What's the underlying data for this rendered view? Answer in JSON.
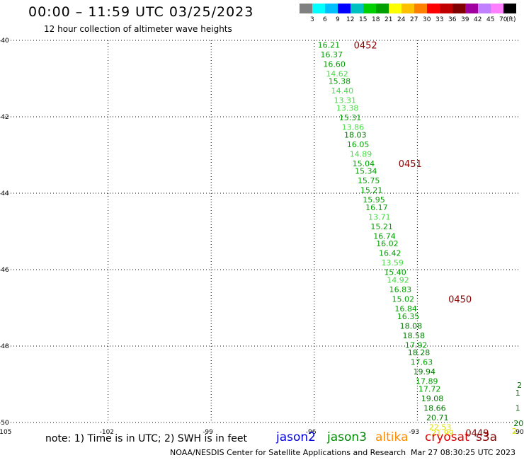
{
  "header": {
    "title": "00:00 – 11:59 UTC 03/25/2023",
    "subtitle": "12 hour collection of altimeter wave heights"
  },
  "colorbar": {
    "colors": [
      "#808080",
      "#00ffff",
      "#00bfff",
      "#0000ff",
      "#00c0c0",
      "#00d000",
      "#00a000",
      "#ffff00",
      "#ffc000",
      "#ff8000",
      "#ff0000",
      "#c00000",
      "#800000",
      "#a000a0",
      "#c080ff",
      "#ff80ff",
      "#000000"
    ],
    "labels": [
      "3",
      "6",
      "9",
      "12",
      "15",
      "18",
      "21",
      "24",
      "27",
      "30",
      "33",
      "36",
      "39",
      "42",
      "45",
      "70",
      "(ft)"
    ]
  },
  "footer": {
    "note": "note: 1) Time is in UTC; 2) SWH is in feet",
    "credit": "NOAA/NESDIS Center for Satellite Applications and Research",
    "timestamp": "Mar 27 08:30:25 UTC 2023"
  },
  "legend": [
    {
      "name": "jason2",
      "color": "#0000dd"
    },
    {
      "name": "jason3",
      "color": "#008800"
    },
    {
      "name": "altika",
      "color": "#ff8c00"
    },
    {
      "name": "cryosat",
      "color": "#dd0000"
    },
    {
      "name": "s3a",
      "color": "#880000"
    }
  ],
  "chart_data": {
    "type": "scatter",
    "title": "00:00 – 11:59 UTC 03/25/2023",
    "subtitle": "12 hour collection of altimeter wave heights",
    "xlabel": "",
    "ylabel": "",
    "xlim": [
      -105,
      -90
    ],
    "ylim": [
      -50,
      -40
    ],
    "xticks": [
      "-105",
      "-102",
      "-99",
      "-96",
      "-93",
      "-90"
    ],
    "yticks": [
      "-40",
      "-42",
      "-44",
      "-46",
      "-48",
      "-50"
    ],
    "grid": true,
    "series": [
      {
        "values": [
          {
            "x": -95.9,
            "y": -40.1,
            "v": "16.21",
            "c": "#00a000"
          },
          {
            "x": -95.82,
            "y": -40.35,
            "v": "16.37",
            "c": "#00a000"
          },
          {
            "x": -95.74,
            "y": -40.6,
            "v": "16.60",
            "c": "#00a000"
          },
          {
            "x": -95.66,
            "y": -40.85,
            "v": "14.62",
            "c": "#44dd44"
          },
          {
            "x": -95.59,
            "y": -41.05,
            "v": "15.38",
            "c": "#00a000"
          },
          {
            "x": -95.51,
            "y": -41.3,
            "v": "14.40",
            "c": "#44dd44"
          },
          {
            "x": -95.43,
            "y": -41.55,
            "v": "13.31",
            "c": "#44dd44"
          },
          {
            "x": -95.36,
            "y": -41.75,
            "v": "13.38",
            "c": "#44dd44"
          },
          {
            "x": -95.28,
            "y": -42.0,
            "v": "15.31",
            "c": "#00a000"
          },
          {
            "x": -95.2,
            "y": -42.25,
            "v": "13.86",
            "c": "#44dd44"
          },
          {
            "x": -95.13,
            "y": -42.45,
            "v": "18.03",
            "c": "#007700"
          },
          {
            "x": -95.05,
            "y": -42.7,
            "v": "16.05",
            "c": "#00a000"
          },
          {
            "x": -94.97,
            "y": -42.95,
            "v": "14.89",
            "c": "#44dd44"
          },
          {
            "x": -94.89,
            "y": -43.2,
            "v": "15.04",
            "c": "#00a000"
          },
          {
            "x": -94.82,
            "y": -43.4,
            "v": "15.34",
            "c": "#00a000"
          },
          {
            "x": -94.74,
            "y": -43.65,
            "v": "15.75",
            "c": "#00a000"
          },
          {
            "x": -94.66,
            "y": -43.9,
            "v": "15.21",
            "c": "#00a000"
          },
          {
            "x": -94.59,
            "y": -44.15,
            "v": "15.95",
            "c": "#00a000"
          },
          {
            "x": -94.51,
            "y": -44.35,
            "v": "16.17",
            "c": "#00a000"
          },
          {
            "x": -94.43,
            "y": -44.6,
            "v": "13.71",
            "c": "#44dd44"
          },
          {
            "x": -94.36,
            "y": -44.85,
            "v": "15.21",
            "c": "#00a000"
          },
          {
            "x": -94.28,
            "y": -45.1,
            "v": "16.74",
            "c": "#00a000"
          },
          {
            "x": -94.2,
            "y": -45.3,
            "v": "16.02",
            "c": "#00a000"
          },
          {
            "x": -94.12,
            "y": -45.55,
            "v": "16.42",
            "c": "#00a000"
          },
          {
            "x": -94.05,
            "y": -45.8,
            "v": "13.59",
            "c": "#44dd44"
          },
          {
            "x": -93.97,
            "y": -46.05,
            "v": "15.40",
            "c": "#00a000"
          },
          {
            "x": -93.89,
            "y": -46.25,
            "v": "14.92",
            "c": "#44dd44"
          },
          {
            "x": -93.82,
            "y": -46.5,
            "v": "16.83",
            "c": "#00a000"
          },
          {
            "x": -93.74,
            "y": -46.75,
            "v": "15.02",
            "c": "#00a000"
          },
          {
            "x": -93.66,
            "y": -47.0,
            "v": "16.84",
            "c": "#00a000"
          },
          {
            "x": -93.59,
            "y": -47.2,
            "v": "16.35",
            "c": "#00a000"
          },
          {
            "x": -93.51,
            "y": -47.45,
            "v": "18.08",
            "c": "#007700"
          },
          {
            "x": -93.43,
            "y": -47.7,
            "v": "18.58",
            "c": "#007700"
          },
          {
            "x": -93.36,
            "y": -47.95,
            "v": "17.92",
            "c": "#00a000"
          },
          {
            "x": -93.28,
            "y": -48.15,
            "v": "18.28",
            "c": "#007700"
          },
          {
            "x": -93.2,
            "y": -48.4,
            "v": "17.63",
            "c": "#00a000"
          },
          {
            "x": -93.12,
            "y": -48.65,
            "v": "19.94",
            "c": "#007700"
          },
          {
            "x": -93.05,
            "y": -48.9,
            "v": "17.89",
            "c": "#00a000"
          },
          {
            "x": -92.97,
            "y": -49.1,
            "v": "17.72",
            "c": "#00a000"
          },
          {
            "x": -92.89,
            "y": -49.35,
            "v": "19.08",
            "c": "#007700"
          },
          {
            "x": -92.82,
            "y": -49.6,
            "v": "18.66",
            "c": "#007700"
          },
          {
            "x": -92.74,
            "y": -49.85,
            "v": "20.71",
            "c": "#007700"
          },
          {
            "x": -92.66,
            "y": -50.1,
            "v": "22.53",
            "c": "#e0e000"
          },
          {
            "x": -92.59,
            "y": -50.25,
            "v": "21.99",
            "c": "#e0e000"
          },
          {
            "x": -90.1,
            "y": -49.0,
            "v": "2",
            "c": "#007700"
          },
          {
            "x": -90.15,
            "y": -49.2,
            "v": "1",
            "c": "#007700"
          },
          {
            "x": -90.15,
            "y": -49.6,
            "v": "1",
            "c": "#007700"
          },
          {
            "x": -90.2,
            "y": -50.0,
            "v": "20",
            "c": "#007700"
          },
          {
            "x": -90.25,
            "y": -50.2,
            "v": "2",
            "c": "#e0e000"
          }
        ]
      }
    ],
    "time_labels": [
      {
        "x": -94.85,
        "y": -40.1,
        "text": "0452"
      },
      {
        "x": -93.55,
        "y": -43.2,
        "text": "0451"
      },
      {
        "x": -92.1,
        "y": -46.75,
        "text": "0450"
      },
      {
        "x": -91.6,
        "y": -50.25,
        "text": "0449"
      }
    ]
  }
}
